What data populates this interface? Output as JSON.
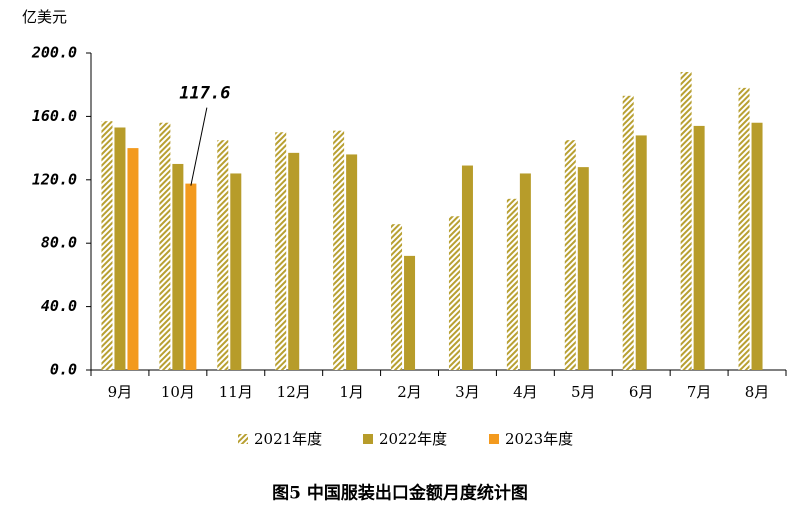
{
  "chart_data": {
    "type": "bar",
    "y_axis_title": "亿美元",
    "caption": "图5   中国服装出口金额月度统计图",
    "categories": [
      "9月",
      "10月",
      "11月",
      "12月",
      "1月",
      "2月",
      "3月",
      "4月",
      "5月",
      "6月",
      "7月",
      "8月"
    ],
    "series": [
      {
        "name": "2021年度",
        "color": "#b8a032",
        "pattern": "hatch",
        "values": [
          157,
          156,
          145,
          150,
          151,
          92,
          97,
          108,
          145,
          173,
          188,
          178
        ]
      },
      {
        "name": "2022年度",
        "color": "#b79c2a",
        "values": [
          153,
          130,
          124,
          137,
          136,
          72,
          129,
          124,
          128,
          148,
          154,
          156
        ]
      },
      {
        "name": "2023年度",
        "color": "#f39a1e",
        "values": [
          140,
          117.6,
          null,
          null,
          null,
          null,
          null,
          null,
          null,
          null,
          null,
          null
        ],
        "show_labels": [
          false,
          true,
          false,
          false,
          false,
          false,
          false,
          false,
          false,
          false,
          false,
          false
        ]
      }
    ],
    "ylim": [
      0,
      200
    ],
    "yticks": [
      {
        "value": 0,
        "label": "0.0"
      },
      {
        "value": 40,
        "label": "40.0"
      },
      {
        "value": 80,
        "label": "80.0"
      },
      {
        "value": 120,
        "label": "120.0"
      },
      {
        "value": 160,
        "label": "160.0"
      },
      {
        "value": 200,
        "label": "200.0"
      }
    ],
    "grid": false,
    "legend": "bottom"
  }
}
